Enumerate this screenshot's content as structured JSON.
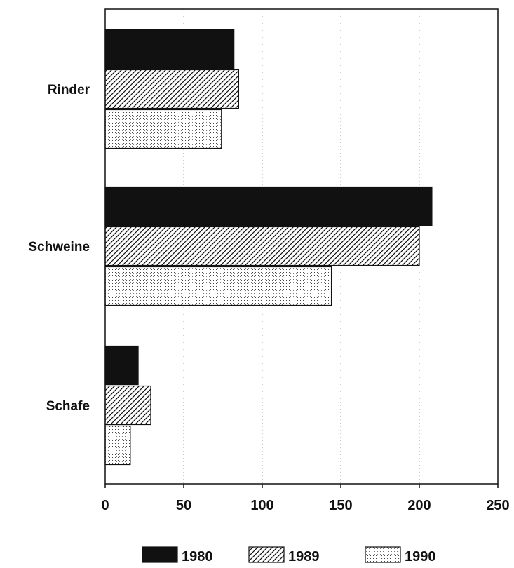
{
  "chart_data": {
    "type": "bar",
    "orientation": "horizontal",
    "title": "",
    "xlabel": "",
    "ylabel": "",
    "categories": [
      "Rinder",
      "Schweine",
      "Schafe"
    ],
    "series": [
      {
        "name": "1980",
        "values": [
          82,
          208,
          21
        ],
        "pattern": "solid"
      },
      {
        "name": "1989",
        "values": [
          85,
          200,
          29
        ],
        "pattern": "hatch"
      },
      {
        "name": "1990",
        "values": [
          74,
          144,
          16
        ],
        "pattern": "dots"
      }
    ],
    "xlim": [
      0,
      250
    ],
    "xticks": [
      0,
      50,
      100,
      150,
      200,
      250
    ],
    "grid": "vertical-dotted",
    "legend_position": "bottom",
    "colors": {
      "ink": "#111111",
      "paper": "#ffffff",
      "grid": "#9a9a9a"
    }
  }
}
